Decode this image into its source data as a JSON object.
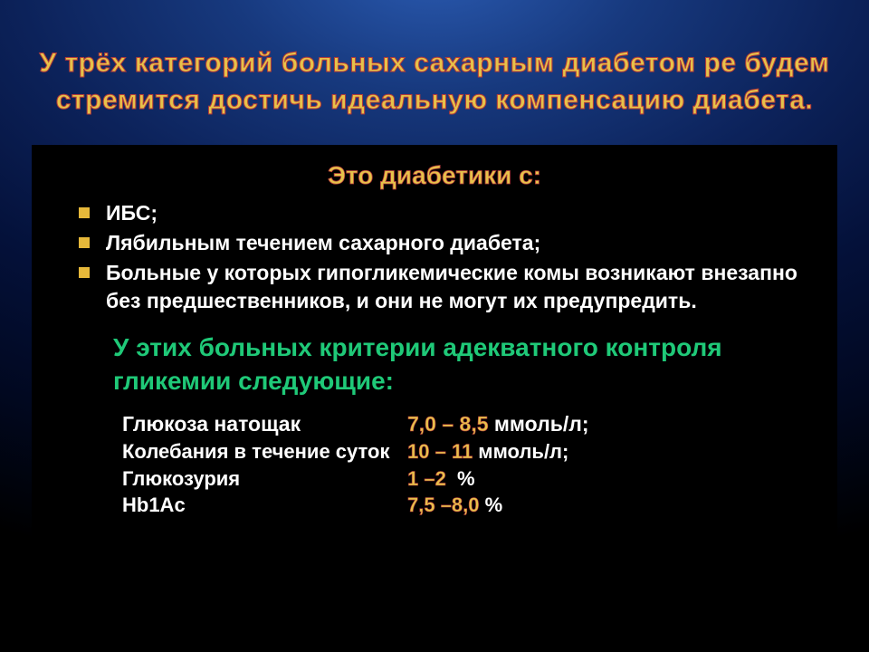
{
  "colors": {
    "title_fill": "#e6c24a",
    "title_stroke": "#b33a3a",
    "bullet_square": "#e6b83a",
    "body_text": "#ffffff",
    "criteria_head": "#1fc978",
    "metric_value": "#e6c24a",
    "content_bg": "#000000"
  },
  "typography": {
    "title_fontsize": 30,
    "subhead_fontsize": 28,
    "bullet_fontsize": 23,
    "criteria_head_fontsize": 28,
    "metric_fontsize": 22,
    "font_family": "Tahoma"
  },
  "title_line1": "У трёх категорий больных сахарным диабетом ре будем",
  "title_line2": "стремится достичь идеальную компенсацию диабета.",
  "subhead": "Это диабетики с:",
  "bullets": [
    "ИБС;",
    "Лябильным течением сахарного диабета;",
    "Больные у которых гипогликемические комы возникают внезапно без предшественников, и они не могут их предупредить."
  ],
  "criteria_head": "У этих больных критерии адекватного контроля гликемии следующие:",
  "metrics": [
    {
      "label": "Глюкоза натощак",
      "value": "7,0 – 8,5",
      "unit": " ммоль/л;"
    },
    {
      "label": "Колебания в течение суток",
      "value": "10 – 11",
      "unit": " ммоль/л;"
    },
    {
      "label": "Глюкозурия",
      "value": "1 –2 ",
      "unit": " %"
    },
    {
      "label": "Hb1Ac",
      "value": "7,5 –8,0",
      "unit": " %"
    }
  ]
}
